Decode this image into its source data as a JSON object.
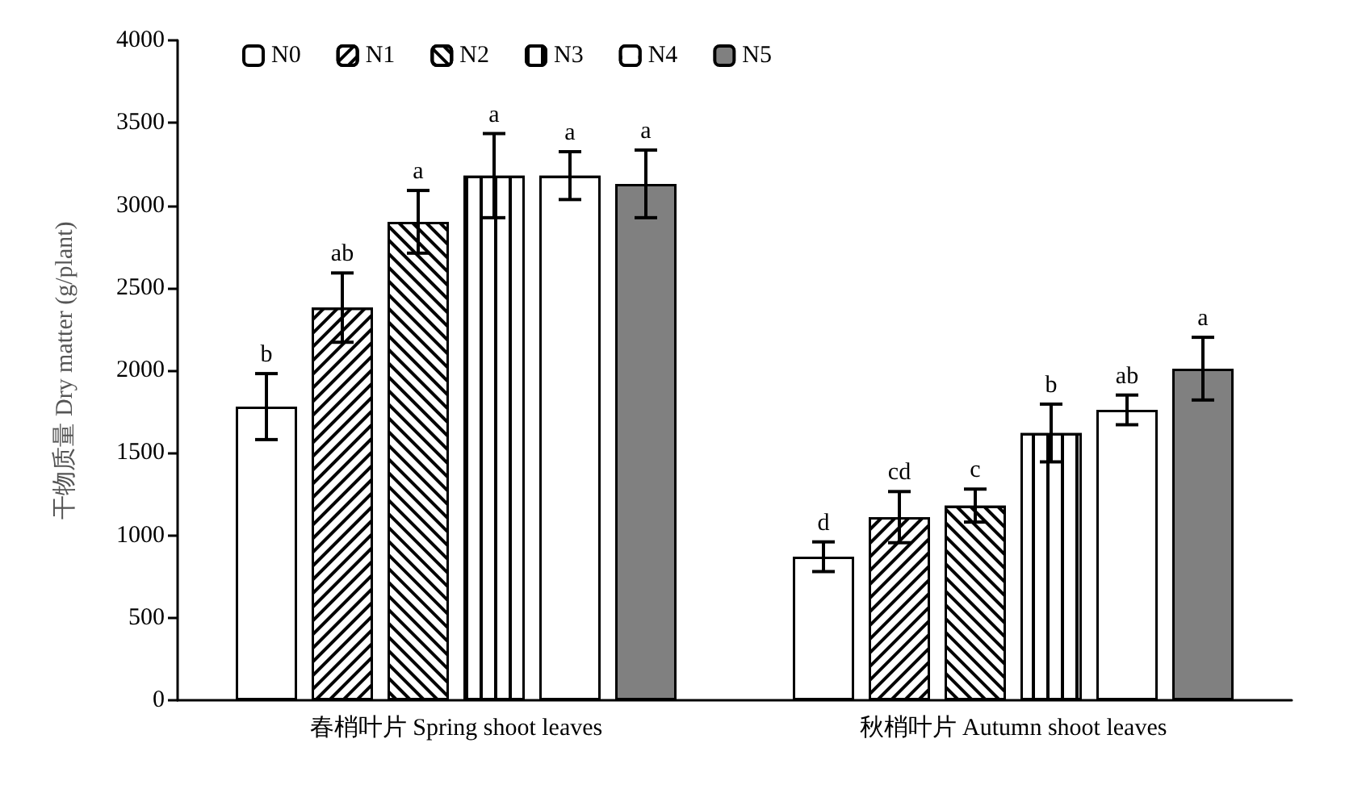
{
  "chart_data": {
    "type": "bar",
    "ylabel": "干物质量 Dry matter (g/plant)",
    "categories": [
      "春梢叶片 Spring shoot leaves",
      "秋梢叶片 Autumn shoot leaves"
    ],
    "series": [
      {
        "name": "N0",
        "color": "#ffffff",
        "values": [
          1780,
          870
        ],
        "errors": [
          200,
          90
        ],
        "value_labels": [
          "b",
          "d"
        ]
      },
      {
        "name": "N1",
        "color": "#ffffff",
        "values": [
          2380,
          1110
        ],
        "errors": [
          210,
          155
        ],
        "value_labels": [
          "ab",
          "cd"
        ]
      },
      {
        "name": "N2",
        "color": "#ffffff",
        "values": [
          2900,
          1180
        ],
        "errors": [
          190,
          100
        ],
        "value_labels": [
          "a",
          "c"
        ]
      },
      {
        "name": "N3",
        "color": "#ffffff",
        "values": [
          3180,
          1620
        ],
        "errors": [
          255,
          175
        ],
        "value_labels": [
          "a",
          "b"
        ]
      },
      {
        "name": "N4",
        "color": "#ffffff",
        "values": [
          3180,
          1760
        ],
        "errors": [
          145,
          90
        ],
        "value_labels": [
          "a",
          "ab"
        ]
      },
      {
        "name": "N5",
        "color": "#808080",
        "values": [
          3130,
          2010
        ],
        "errors": [
          205,
          190
        ],
        "value_labels": [
          "a",
          "a"
        ]
      }
    ],
    "ylim": [
      0,
      4000
    ],
    "yticks": [
      0,
      500,
      1000,
      1500,
      2000,
      2500,
      3000,
      3500,
      4000
    ],
    "grid": false,
    "legend": "top left"
  }
}
